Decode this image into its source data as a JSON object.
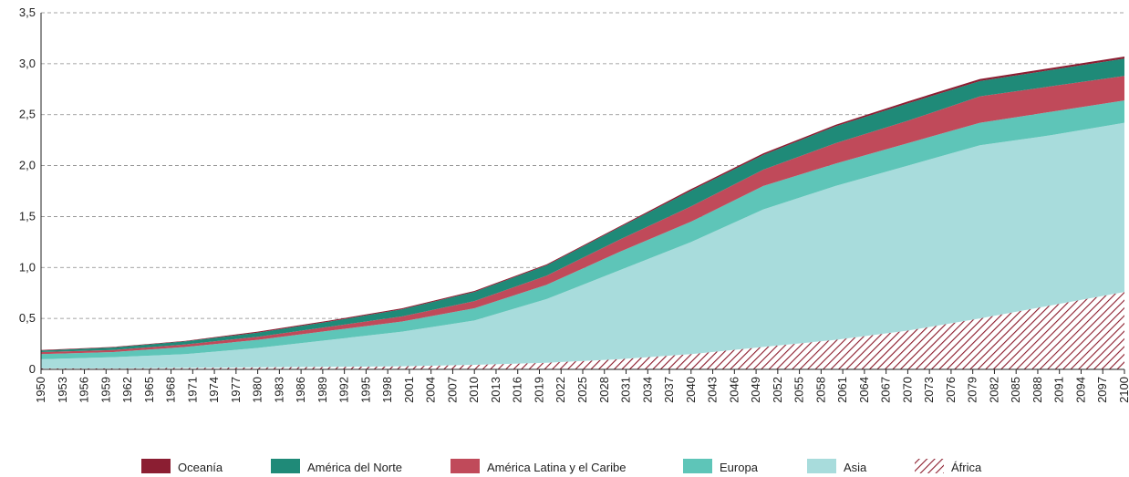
{
  "chart_data": {
    "type": "stacked-area",
    "x": [
      1950,
      1960,
      1970,
      1980,
      1990,
      2000,
      2010,
      2020,
      2030,
      2040,
      2050,
      2060,
      2070,
      2080,
      2090,
      2100
    ],
    "series": [
      {
        "name": "Oceanía",
        "color": "#8b1e32",
        "values": [
          0.005,
          0.005,
          0.005,
          0.01,
          0.01,
          0.01,
          0.01,
          0.01,
          0.01,
          0.015,
          0.015,
          0.015,
          0.02,
          0.02,
          0.02,
          0.02
        ]
      },
      {
        "name": "América del Norte",
        "color": "#1f8a78",
        "values": [
          0.015,
          0.025,
          0.03,
          0.04,
          0.05,
          0.07,
          0.09,
          0.1,
          0.12,
          0.155,
          0.145,
          0.165,
          0.17,
          0.15,
          0.16,
          0.17
        ]
      },
      {
        "name": "América Latina y el Caribe",
        "color": "#c04a5a",
        "values": [
          0.02,
          0.02,
          0.025,
          0.03,
          0.04,
          0.05,
          0.07,
          0.09,
          0.12,
          0.15,
          0.16,
          0.2,
          0.22,
          0.26,
          0.25,
          0.24
        ]
      },
      {
        "name": "Europa",
        "color": "#5ec5b8",
        "values": [
          0.05,
          0.05,
          0.07,
          0.08,
          0.09,
          0.1,
          0.12,
          0.14,
          0.18,
          0.2,
          0.23,
          0.22,
          0.22,
          0.22,
          0.23,
          0.22
        ]
      },
      {
        "name": "Asia",
        "color": "#a8dcdc",
        "values": [
          0.09,
          0.11,
          0.135,
          0.19,
          0.265,
          0.34,
          0.435,
          0.625,
          0.87,
          1.1,
          1.35,
          1.51,
          1.62,
          1.7,
          1.67,
          1.66
        ]
      },
      {
        "name": "África",
        "color": "#8b1a2b",
        "hatch": true,
        "values": [
          0.01,
          0.01,
          0.015,
          0.02,
          0.025,
          0.03,
          0.045,
          0.065,
          0.1,
          0.15,
          0.22,
          0.29,
          0.38,
          0.5,
          0.63,
          0.76
        ]
      }
    ],
    "xlim": [
      1950,
      2100
    ],
    "xticks": [
      1950,
      1953,
      1956,
      1959,
      1962,
      1965,
      1968,
      1971,
      1974,
      1977,
      1980,
      1983,
      1986,
      1989,
      1992,
      1995,
      1998,
      2001,
      2004,
      2007,
      2010,
      2013,
      2016,
      2019,
      2022,
      2025,
      2028,
      2031,
      2034,
      2037,
      2040,
      2043,
      2046,
      2049,
      2052,
      2055,
      2058,
      2061,
      2064,
      2067,
      2070,
      2073,
      2076,
      2079,
      2082,
      2085,
      2088,
      2091,
      2094,
      2097,
      2100
    ],
    "ylim": [
      0,
      3.5
    ],
    "yticks": [
      0,
      {
        "value": 0.5,
        "label": "0,5"
      },
      {
        "value": 1,
        "label": "1,0"
      },
      {
        "value": 1.5,
        "label": "1,5"
      },
      {
        "value": 2,
        "label": "2,0"
      },
      {
        "value": 2.5,
        "label": "2,5"
      },
      {
        "value": 3,
        "label": "3,0"
      },
      {
        "value": 3.5,
        "label": "3,5"
      }
    ],
    "grid": true
  }
}
